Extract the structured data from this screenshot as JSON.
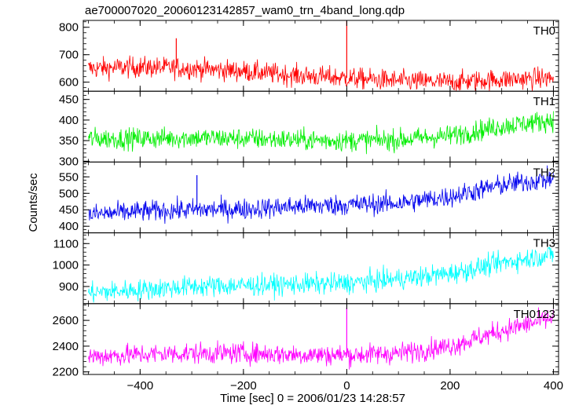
{
  "chart_data": {
    "type": "line",
    "title": "ae700007020_20060123142857_wam0_trn_4band_long.qdp",
    "xlabel": "Time [sec] 0 = 2006/01/23 14:28:57",
    "ylabel": "Counts/sec",
    "xlim": [
      -510,
      410
    ],
    "xticks": [
      -400,
      -200,
      0,
      200,
      400
    ],
    "xtick_labels": [
      "−400",
      "−200",
      "0",
      "200",
      "400"
    ],
    "panels": [
      {
        "name": "TH0",
        "color": "#ff0000",
        "ylim": [
          567,
          825
        ],
        "yticks": [
          600,
          700,
          800
        ],
        "series": [
          {
            "x": [
              -500,
              -400,
              -300,
              -200,
              -100,
              0,
              100,
              200,
              300,
              400
            ],
            "y": [
              650,
              655,
              650,
              640,
              625,
              615,
              605,
              600,
              610,
              615
            ]
          }
        ],
        "spikes": [
          {
            "x": 0,
            "y": 822
          },
          {
            "x": -330,
            "y": 760
          }
        ]
      },
      {
        "name": "TH1",
        "color": "#00ee00",
        "ylim": [
          298,
          470
        ],
        "yticks": [
          300,
          350,
          400,
          450
        ],
        "series": [
          {
            "x": [
              -500,
              -400,
              -300,
              -200,
              -100,
              0,
              100,
              200,
              300,
              400
            ],
            "y": [
              355,
              355,
              357,
              355,
              352,
              350,
              352,
              362,
              385,
              400
            ]
          }
        ],
        "spikes": []
      },
      {
        "name": "TH2",
        "color": "#0000ee",
        "ylim": [
          380,
          595
        ],
        "yticks": [
          400,
          450,
          500,
          550
        ],
        "series": [
          {
            "x": [
              -500,
              -400,
              -300,
              -200,
              -100,
              0,
              100,
              200,
              300,
              400
            ],
            "y": [
              435,
              445,
              450,
              452,
              460,
              465,
              470,
              490,
              525,
              545
            ]
          }
        ],
        "spikes": [
          {
            "x": -290,
            "y": 555
          }
        ]
      },
      {
        "name": "TH3",
        "color": "#00ffff",
        "ylim": [
          820,
          1150
        ],
        "yticks": [
          900,
          1000,
          1100
        ],
        "series": [
          {
            "x": [
              -500,
              -400,
              -300,
              -200,
              -100,
              0,
              100,
              200,
              300,
              400
            ],
            "y": [
              870,
              885,
              900,
              905,
              910,
              915,
              935,
              960,
              1010,
              1050
            ]
          }
        ],
        "spikes": []
      },
      {
        "name": "TH0123",
        "color": "#ff00ff",
        "ylim": [
          2180,
          2730
        ],
        "yticks": [
          2200,
          2400,
          2600
        ],
        "series": [
          {
            "x": [
              -500,
              -400,
              -300,
              -200,
              -100,
              0,
              100,
              200,
              300,
              400
            ],
            "y": [
              2320,
              2335,
              2345,
              2345,
              2335,
              2330,
              2345,
              2400,
              2520,
              2620
            ]
          }
        ],
        "spikes": [
          {
            "x": 0,
            "y": 2700
          }
        ]
      }
    ]
  }
}
